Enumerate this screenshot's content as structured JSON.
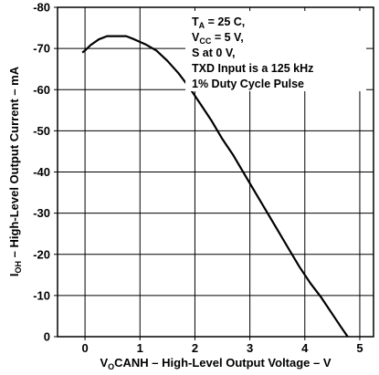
{
  "chart_data": {
    "type": "line",
    "xlabel": {
      "prefix": "V",
      "sub": "O",
      "rest": "CANH – High-Level Output Voltage – V"
    },
    "ylabel": {
      "prefix": "I",
      "sub": "OH",
      "rest": " – High-Level Output Current – mA"
    },
    "xlim": [
      -0.5,
      5.25
    ],
    "ylim": [
      0,
      -80
    ],
    "x_ticks": [
      0,
      1,
      2,
      3,
      4,
      5
    ],
    "y_ticks": [
      0,
      -10,
      -20,
      -30,
      -40,
      -50,
      -60,
      -70,
      -80
    ],
    "grid": true,
    "annotation": {
      "lines": [
        {
          "base": "T",
          "sub": "A",
          "rest": " = 25 C,"
        },
        {
          "base": "V",
          "sub": "CC",
          "rest": " = 5 V,"
        },
        {
          "base": "S at 0 V,",
          "sub": "",
          "rest": ""
        },
        {
          "base": "TXD Input is a 125 kHz",
          "sub": "",
          "rest": ""
        },
        {
          "base": "1% Duty Cycle Pulse",
          "sub": "",
          "rest": ""
        }
      ]
    },
    "series": [
      {
        "points": [
          [
            -0.05,
            -69
          ],
          [
            0.0,
            -69.5
          ],
          [
            0.1,
            -70.8
          ],
          [
            0.25,
            -72.2
          ],
          [
            0.4,
            -73.0
          ],
          [
            0.55,
            -73.0
          ],
          [
            0.75,
            -73.0
          ],
          [
            0.9,
            -72.2
          ],
          [
            1.1,
            -71.0
          ],
          [
            1.3,
            -69.5
          ],
          [
            1.5,
            -67.0
          ],
          [
            1.7,
            -64.0
          ],
          [
            1.9,
            -60.5
          ],
          [
            2.1,
            -56.5
          ],
          [
            2.3,
            -52.5
          ],
          [
            2.5,
            -48.0
          ],
          [
            2.7,
            -44.0
          ],
          [
            2.9,
            -39.5
          ],
          [
            3.1,
            -35.0
          ],
          [
            3.3,
            -30.5
          ],
          [
            3.5,
            -26.0
          ],
          [
            3.7,
            -21.5
          ],
          [
            3.9,
            -17.0
          ],
          [
            4.1,
            -13.0
          ],
          [
            4.3,
            -9.5
          ],
          [
            4.5,
            -5.5
          ],
          [
            4.65,
            -2.5
          ],
          [
            4.78,
            0
          ]
        ]
      }
    ]
  }
}
